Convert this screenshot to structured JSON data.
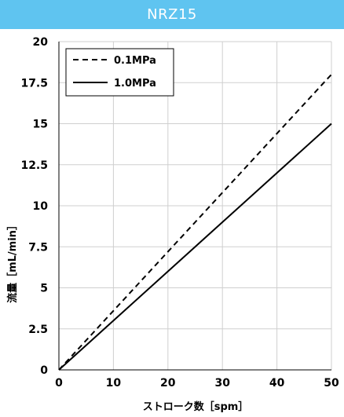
{
  "header": {
    "title": "NRZ15"
  },
  "chart_data": {
    "type": "line",
    "title": "NRZ15",
    "xlabel": "ストローク数［spm］",
    "ylabel": "流量［mL/min］",
    "xlim": [
      0,
      50
    ],
    "ylim": [
      0,
      20
    ],
    "xticks": [
      0,
      10,
      20,
      30,
      40,
      50
    ],
    "xtick_labels": [
      "0",
      "10",
      "20",
      "30",
      "40",
      "50"
    ],
    "yticks": [
      0,
      2.5,
      5,
      7.5,
      10,
      12.5,
      15,
      17.5,
      20
    ],
    "ytick_labels": [
      "0",
      "2.5",
      "5",
      "7.5",
      "10",
      "12.5",
      "15",
      "17.5",
      "20"
    ],
    "grid": true,
    "legend_position": "top-left",
    "series": [
      {
        "name": "0.1MPa",
        "style": "dashed",
        "color": "#000000",
        "x": [
          0,
          50
        ],
        "y": [
          0,
          18
        ]
      },
      {
        "name": "1.0MPa",
        "style": "solid",
        "color": "#000000",
        "x": [
          0,
          50
        ],
        "y": [
          0,
          15
        ]
      }
    ]
  }
}
